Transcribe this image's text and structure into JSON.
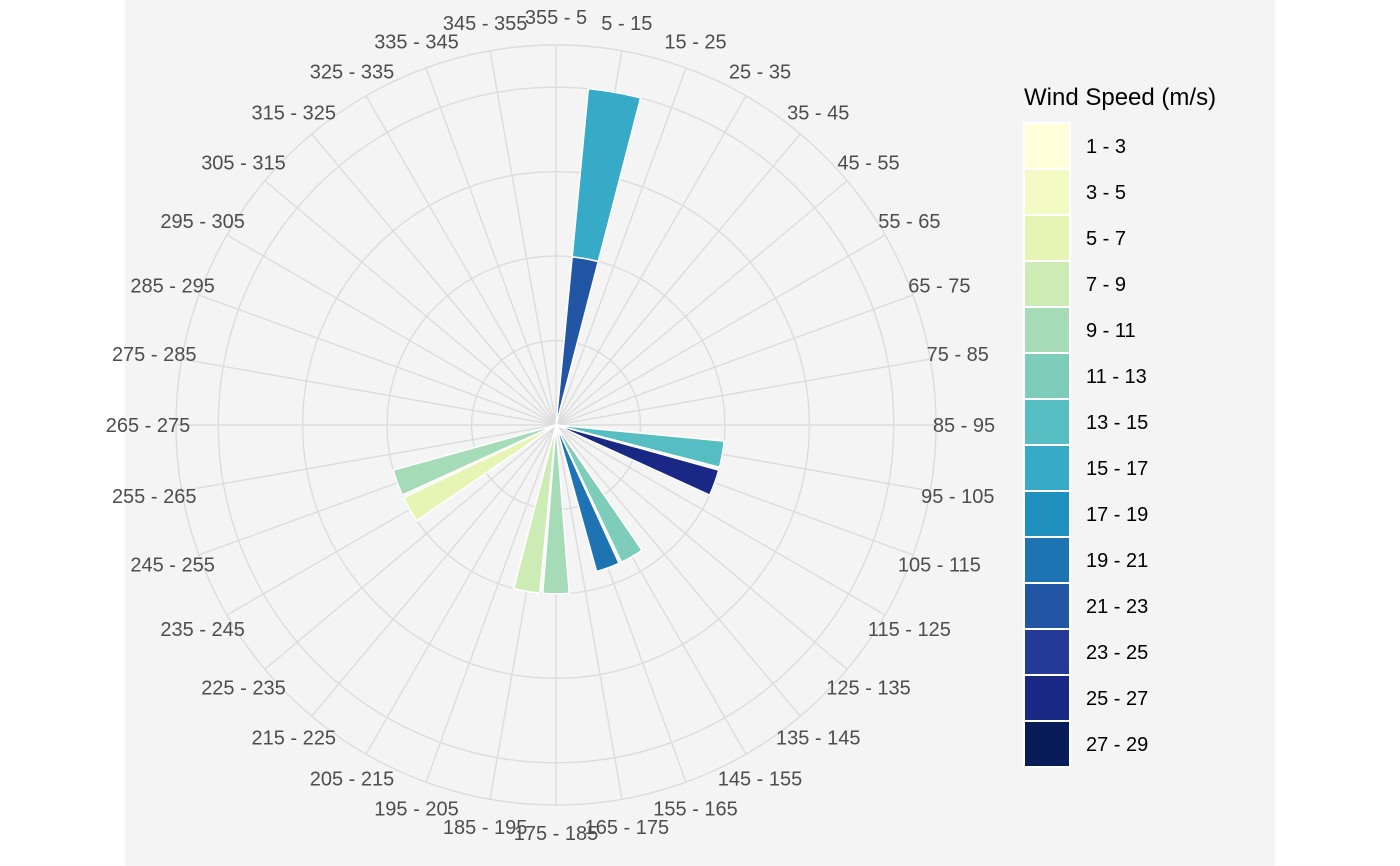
{
  "chart_data": {
    "type": "polar-bar (wind rose)",
    "title": "",
    "xlabel": "",
    "ylabel": "",
    "direction_labels": [
      "355 - 5",
      "5 - 15",
      "15 - 25",
      "25 - 35",
      "35 - 45",
      "45 - 55",
      "55 - 65",
      "65 - 75",
      "75 - 85",
      "85 - 95",
      "95 - 105",
      "105 - 115",
      "115 - 125",
      "125 - 135",
      "135 - 145",
      "145 - 155",
      "155 - 165",
      "165 - 175",
      "175 - 185",
      "185 - 195",
      "195 - 205",
      "205 - 215",
      "215 - 225",
      "225 - 235",
      "235 - 245",
      "245 - 255",
      "255 - 265",
      "265 - 275",
      "275 - 285",
      "285 - 295",
      "295 - 305",
      "305 - 315",
      "315 - 325",
      "325 - 335",
      "335 - 345",
      "345 - 355"
    ],
    "r_max": 4.5,
    "r_grid": [
      1,
      2,
      3,
      4
    ],
    "grid": true,
    "legend": {
      "title": "Wind Speed (m/s)",
      "placement": "right",
      "items": [
        {
          "label": "1 - 3",
          "color": "#ffffd9"
        },
        {
          "label": "3 - 5",
          "color": "#f3fac4"
        },
        {
          "label": "5 - 7",
          "color": "#e6f5b3"
        },
        {
          "label": "7 - 9",
          "color": "#ccebb5"
        },
        {
          "label": "9 - 11",
          "color": "#a6dbb7"
        },
        {
          "label": "11 - 13",
          "color": "#7ecdbb"
        },
        {
          "label": "13 - 15",
          "color": "#56bec2"
        },
        {
          "label": "15 - 17",
          "color": "#36aac6"
        },
        {
          "label": "17 - 19",
          "color": "#1f91bf"
        },
        {
          "label": "19 - 21",
          "color": "#1e73b2"
        },
        {
          "label": "21 - 23",
          "color": "#2255a3"
        },
        {
          "label": "23 - 25",
          "color": "#233b97"
        },
        {
          "label": "25 - 27",
          "color": "#192885"
        },
        {
          "label": "27 - 29",
          "color": "#081d58"
        }
      ]
    },
    "bars": [
      {
        "direction": "5 - 15",
        "segments": [
          {
            "speed": "21 - 23",
            "value": 2.0
          },
          {
            "speed": "15 - 17",
            "value": 2.0
          }
        ]
      },
      {
        "direction": "95 - 105",
        "segments": [
          {
            "speed": "13 - 15",
            "value": 2.0
          }
        ]
      },
      {
        "direction": "105 - 115",
        "segments": [
          {
            "speed": "25 - 27",
            "value": 2.0
          }
        ]
      },
      {
        "direction": "145 - 155",
        "segments": [
          {
            "speed": "11 - 13",
            "value": 1.8
          }
        ]
      },
      {
        "direction": "155 - 165",
        "segments": [
          {
            "speed": "19 - 21",
            "value": 1.8
          }
        ]
      },
      {
        "direction": "175 - 185",
        "segments": [
          {
            "speed": "9 - 11",
            "value": 2.0
          }
        ]
      },
      {
        "direction": "185 - 195",
        "segments": [
          {
            "speed": "7 - 9",
            "value": 2.0
          }
        ]
      },
      {
        "direction": "235 - 245",
        "segments": [
          {
            "speed": "5 - 7",
            "value": 2.0
          }
        ]
      },
      {
        "direction": "245 - 255",
        "segments": [
          {
            "speed": "9 - 11",
            "value": 2.0
          }
        ]
      }
    ]
  }
}
